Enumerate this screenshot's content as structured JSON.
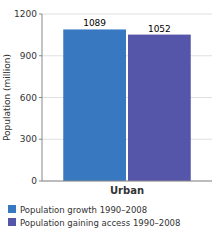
{
  "chart_data": {
    "type": "bar",
    "categories": [
      "Urban"
    ],
    "series": [
      {
        "name": "Population growth 1990–2008",
        "color": "#3878c0",
        "values": [
          1089
        ]
      },
      {
        "name": "Population gaining access 1990–2008",
        "color": "#5555aa",
        "values": [
          1052
        ]
      }
    ],
    "ylabel": "Population (million)",
    "ylim": [
      0,
      1200
    ],
    "yticks": [
      0,
      300,
      600,
      900,
      1200
    ],
    "grid": true,
    "data_labels": true,
    "legend": "bottom"
  }
}
